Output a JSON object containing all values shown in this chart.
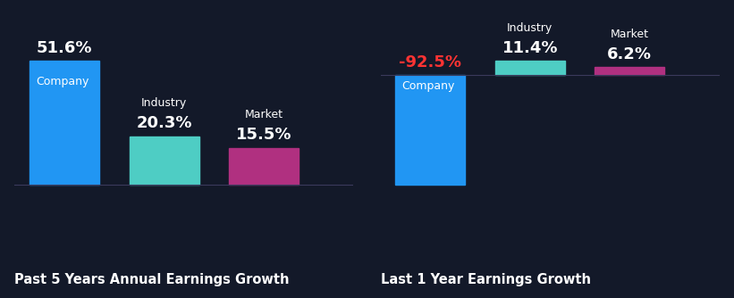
{
  "background_color": "#131929",
  "left_chart": {
    "title": "Past 5 Years Annual Earnings Growth",
    "bars": [
      {
        "name": "Company",
        "value": 51.6,
        "color": "#2196F3"
      },
      {
        "name": "Industry",
        "value": 20.3,
        "color": "#4ECDC4"
      },
      {
        "name": "Market",
        "value": 15.5,
        "color": "#B03080"
      }
    ]
  },
  "right_chart": {
    "title": "Last 1 Year Earnings Growth",
    "bars": [
      {
        "name": "Company",
        "value": -92.5,
        "color": "#2196F3"
      },
      {
        "name": "Industry",
        "value": 11.4,
        "color": "#4ECDC4"
      },
      {
        "name": "Market",
        "value": 6.2,
        "color": "#B03080"
      }
    ]
  },
  "text_color": "#FFFFFF",
  "negative_value_color": "#FF3333",
  "title_fontsize": 10.5,
  "name_fontsize": 9,
  "value_fontsize": 13,
  "bar_width": 0.7,
  "x_positions": [
    0,
    1,
    2
  ],
  "xlim": [
    -0.5,
    2.9
  ],
  "baseline_color": "#3a3a5c",
  "baseline_lw": 0.8
}
